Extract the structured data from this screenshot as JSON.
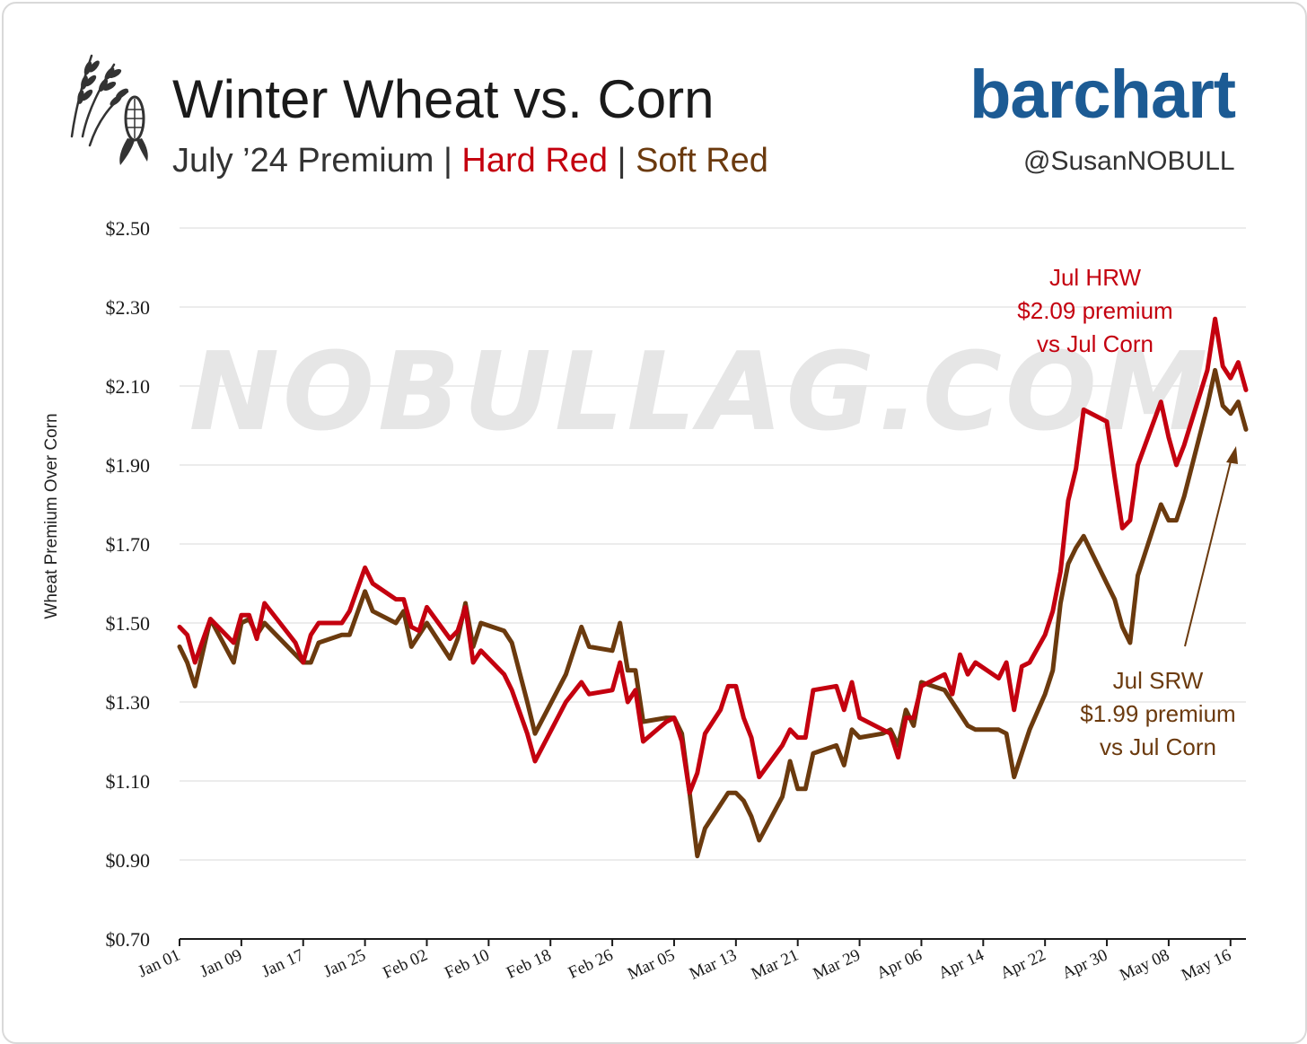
{
  "header": {
    "title": "Winter Wheat vs. Corn",
    "subtitle_prefix": "July ’24 Premium",
    "sep1": "|",
    "subtitle_hard": "Hard Red",
    "sep2": "|",
    "subtitle_soft": "Soft Red",
    "brand": "barchart",
    "handle": "@SusanNOBULL",
    "icon": "wheat-and-corn-icon"
  },
  "watermark": "NOBULLAG.COM",
  "colors": {
    "hrw": "#c4000f",
    "srw": "#6b3a0e",
    "brand": "#1c5b94",
    "grid": "#e6e6e6"
  },
  "chart_data": {
    "type": "line",
    "ylabel": "Wheat Premium Over Corn",
    "xlabel": "",
    "ylim": [
      0.7,
      2.5
    ],
    "y_ticks": [
      "$2.50",
      "$2.30",
      "$2.10",
      "$1.90",
      "$1.70",
      "$1.50",
      "$1.30",
      "$1.10",
      "$0.90",
      "$0.70"
    ],
    "y_tick_values": [
      2.5,
      2.3,
      2.1,
      1.9,
      1.7,
      1.5,
      1.3,
      1.1,
      0.9,
      0.7
    ],
    "x_ticks": [
      "Jan 01",
      "Jan 09",
      "Jan 17",
      "Jan 25",
      "Feb 02",
      "Feb 10",
      "Feb 18",
      "Feb 26",
      "Mar 05",
      "Mar 13",
      "Mar 21",
      "Mar 29",
      "Apr 06",
      "Apr 14",
      "Apr 22",
      "Apr 30",
      "May 08",
      "May 16"
    ],
    "x_range": [
      "Jan 01",
      "May 18"
    ],
    "grid": "horizontal",
    "series": [
      {
        "name": "Hard Red",
        "color": "#c4000f",
        "points": [
          [
            "Jan 01",
            1.49
          ],
          [
            "Jan 02",
            1.47
          ],
          [
            "Jan 03",
            1.4
          ],
          [
            "Jan 05",
            1.51
          ],
          [
            "Jan 08",
            1.45
          ],
          [
            "Jan 09",
            1.52
          ],
          [
            "Jan 10",
            1.52
          ],
          [
            "Jan 11",
            1.46
          ],
          [
            "Jan 12",
            1.55
          ],
          [
            "Jan 16",
            1.45
          ],
          [
            "Jan 17",
            1.4
          ],
          [
            "Jan 18",
            1.47
          ],
          [
            "Jan 19",
            1.5
          ],
          [
            "Jan 22",
            1.5
          ],
          [
            "Jan 23",
            1.53
          ],
          [
            "Jan 25",
            1.64
          ],
          [
            "Jan 26",
            1.6
          ],
          [
            "Jan 29",
            1.56
          ],
          [
            "Jan 30",
            1.56
          ],
          [
            "Jan 31",
            1.49
          ],
          [
            "Feb 01",
            1.48
          ],
          [
            "Feb 02",
            1.54
          ],
          [
            "Feb 05",
            1.46
          ],
          [
            "Feb 06",
            1.48
          ],
          [
            "Feb 07",
            1.54
          ],
          [
            "Feb 08",
            1.4
          ],
          [
            "Feb 09",
            1.43
          ],
          [
            "Feb 12",
            1.37
          ],
          [
            "Feb 13",
            1.33
          ],
          [
            "Feb 15",
            1.22
          ],
          [
            "Feb 16",
            1.15
          ],
          [
            "Feb 20",
            1.3
          ],
          [
            "Feb 22",
            1.35
          ],
          [
            "Feb 23",
            1.32
          ],
          [
            "Feb 26",
            1.33
          ],
          [
            "Feb 27",
            1.4
          ],
          [
            "Feb 28",
            1.3
          ],
          [
            "Feb 29",
            1.33
          ],
          [
            "Mar 01",
            1.2
          ],
          [
            "Mar 04",
            1.25
          ],
          [
            "Mar 05",
            1.26
          ],
          [
            "Mar 06",
            1.2
          ],
          [
            "Mar 07",
            1.07
          ],
          [
            "Mar 08",
            1.12
          ],
          [
            "Mar 09",
            1.22
          ],
          [
            "Mar 11",
            1.28
          ],
          [
            "Mar 12",
            1.34
          ],
          [
            "Mar 13",
            1.34
          ],
          [
            "Mar 14",
            1.26
          ],
          [
            "Mar 15",
            1.21
          ],
          [
            "Mar 16",
            1.11
          ],
          [
            "Mar 19",
            1.19
          ],
          [
            "Mar 20",
            1.23
          ],
          [
            "Mar 21",
            1.21
          ],
          [
            "Mar 22",
            1.21
          ],
          [
            "Mar 23",
            1.33
          ],
          [
            "Mar 26",
            1.34
          ],
          [
            "Mar 27",
            1.28
          ],
          [
            "Mar 28",
            1.35
          ],
          [
            "Mar 29",
            1.26
          ],
          [
            "Apr 01",
            1.23
          ],
          [
            "Apr 02",
            1.22
          ],
          [
            "Apr 03",
            1.16
          ],
          [
            "Apr 04",
            1.26
          ],
          [
            "Apr 05",
            1.26
          ],
          [
            "Apr 06",
            1.34
          ],
          [
            "Apr 09",
            1.37
          ],
          [
            "Apr 10",
            1.32
          ],
          [
            "Apr 11",
            1.42
          ],
          [
            "Apr 12",
            1.37
          ],
          [
            "Apr 13",
            1.4
          ],
          [
            "Apr 16",
            1.36
          ],
          [
            "Apr 17",
            1.4
          ],
          [
            "Apr 18",
            1.28
          ],
          [
            "Apr 19",
            1.39
          ],
          [
            "Apr 20",
            1.4
          ],
          [
            "Apr 22",
            1.47
          ],
          [
            "Apr 23",
            1.53
          ],
          [
            "Apr 24",
            1.63
          ],
          [
            "Apr 25",
            1.81
          ],
          [
            "Apr 26",
            1.89
          ],
          [
            "Apr 27",
            2.04
          ],
          [
            "Apr 30",
            2.01
          ],
          [
            "May 01",
            1.87
          ],
          [
            "May 02",
            1.74
          ],
          [
            "May 03",
            1.76
          ],
          [
            "May 04",
            1.9
          ],
          [
            "May 07",
            2.06
          ],
          [
            "May 08",
            1.97
          ],
          [
            "May 09",
            1.9
          ],
          [
            "May 10",
            1.95
          ],
          [
            "May 13",
            2.14
          ],
          [
            "May 14",
            2.27
          ],
          [
            "May 15",
            2.15
          ],
          [
            "May 16",
            2.12
          ],
          [
            "May 17",
            2.16
          ],
          [
            "May 18",
            2.09
          ]
        ],
        "end_label": "Jul HRW",
        "end_value_label": "$2.09 premium",
        "end_vs_label": "vs Jul Corn"
      },
      {
        "name": "Soft Red",
        "color": "#6b3a0e",
        "points": [
          [
            "Jan 01",
            1.44
          ],
          [
            "Jan 02",
            1.4
          ],
          [
            "Jan 03",
            1.34
          ],
          [
            "Jan 05",
            1.51
          ],
          [
            "Jan 08",
            1.4
          ],
          [
            "Jan 09",
            1.5
          ],
          [
            "Jan 10",
            1.51
          ],
          [
            "Jan 11",
            1.47
          ],
          [
            "Jan 12",
            1.5
          ],
          [
            "Jan 16",
            1.42
          ],
          [
            "Jan 17",
            1.4
          ],
          [
            "Jan 18",
            1.4
          ],
          [
            "Jan 19",
            1.45
          ],
          [
            "Jan 22",
            1.47
          ],
          [
            "Jan 23",
            1.47
          ],
          [
            "Jan 25",
            1.58
          ],
          [
            "Jan 26",
            1.53
          ],
          [
            "Jan 29",
            1.5
          ],
          [
            "Jan 30",
            1.53
          ],
          [
            "Jan 31",
            1.44
          ],
          [
            "Feb 01",
            1.47
          ],
          [
            "Feb 02",
            1.5
          ],
          [
            "Feb 05",
            1.41
          ],
          [
            "Feb 06",
            1.46
          ],
          [
            "Feb 07",
            1.55
          ],
          [
            "Feb 08",
            1.44
          ],
          [
            "Feb 09",
            1.5
          ],
          [
            "Feb 12",
            1.48
          ],
          [
            "Feb 13",
            1.45
          ],
          [
            "Feb 15",
            1.3
          ],
          [
            "Feb 16",
            1.22
          ],
          [
            "Feb 20",
            1.37
          ],
          [
            "Feb 22",
            1.49
          ],
          [
            "Feb 23",
            1.44
          ],
          [
            "Feb 26",
            1.43
          ],
          [
            "Feb 27",
            1.5
          ],
          [
            "Feb 28",
            1.38
          ],
          [
            "Feb 29",
            1.38
          ],
          [
            "Mar 01",
            1.25
          ],
          [
            "Mar 04",
            1.26
          ],
          [
            "Mar 05",
            1.26
          ],
          [
            "Mar 06",
            1.22
          ],
          [
            "Mar 07",
            1.07
          ],
          [
            "Mar 08",
            0.91
          ],
          [
            "Mar 09",
            0.98
          ],
          [
            "Mar 11",
            1.04
          ],
          [
            "Mar 12",
            1.07
          ],
          [
            "Mar 13",
            1.07
          ],
          [
            "Mar 14",
            1.05
          ],
          [
            "Mar 15",
            1.01
          ],
          [
            "Mar 16",
            0.95
          ],
          [
            "Mar 19",
            1.06
          ],
          [
            "Mar 20",
            1.15
          ],
          [
            "Mar 21",
            1.08
          ],
          [
            "Mar 22",
            1.08
          ],
          [
            "Mar 23",
            1.17
          ],
          [
            "Mar 26",
            1.19
          ],
          [
            "Mar 27",
            1.14
          ],
          [
            "Mar 28",
            1.23
          ],
          [
            "Mar 29",
            1.21
          ],
          [
            "Apr 01",
            1.22
          ],
          [
            "Apr 02",
            1.23
          ],
          [
            "Apr 03",
            1.19
          ],
          [
            "Apr 04",
            1.28
          ],
          [
            "Apr 05",
            1.24
          ],
          [
            "Apr 06",
            1.35
          ],
          [
            "Apr 09",
            1.33
          ],
          [
            "Apr 10",
            1.3
          ],
          [
            "Apr 11",
            1.27
          ],
          [
            "Apr 12",
            1.24
          ],
          [
            "Apr 13",
            1.23
          ],
          [
            "Apr 16",
            1.23
          ],
          [
            "Apr 17",
            1.22
          ],
          [
            "Apr 18",
            1.11
          ],
          [
            "Apr 19",
            1.17
          ],
          [
            "Apr 20",
            1.23
          ],
          [
            "Apr 22",
            1.32
          ],
          [
            "Apr 23",
            1.38
          ],
          [
            "Apr 24",
            1.55
          ],
          [
            "Apr 25",
            1.65
          ],
          [
            "Apr 26",
            1.69
          ],
          [
            "Apr 27",
            1.72
          ],
          [
            "Apr 30",
            1.6
          ],
          [
            "May 01",
            1.56
          ],
          [
            "May 02",
            1.49
          ],
          [
            "May 03",
            1.45
          ],
          [
            "May 04",
            1.62
          ],
          [
            "May 07",
            1.8
          ],
          [
            "May 08",
            1.76
          ],
          [
            "May 09",
            1.76
          ],
          [
            "May 10",
            1.82
          ],
          [
            "May 13",
            2.05
          ],
          [
            "May 14",
            2.14
          ],
          [
            "May 15",
            2.05
          ],
          [
            "May 16",
            2.03
          ],
          [
            "May 17",
            2.06
          ],
          [
            "May 18",
            1.99
          ]
        ],
        "end_label": "Jul SRW",
        "end_value_label": "$1.99 premium",
        "end_vs_label": "vs Jul Corn"
      }
    ]
  }
}
